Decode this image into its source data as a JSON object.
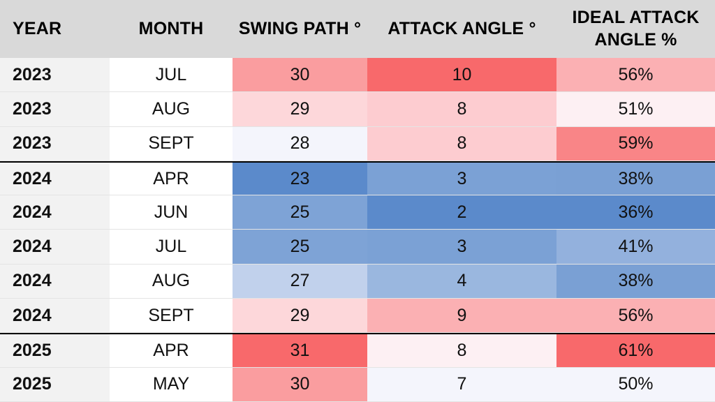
{
  "chart_data": {
    "type": "table",
    "columns": [
      "YEAR",
      "MONTH",
      "SWING PATH °",
      "ATTACK ANGLE °",
      "IDEAL ATTACK ANGLE %"
    ],
    "rows": [
      {
        "year": "2023",
        "month": "JUL",
        "swing_path": "30",
        "attack_angle": "10",
        "ideal_pct": "56%"
      },
      {
        "year": "2023",
        "month": "AUG",
        "swing_path": "29",
        "attack_angle": "8",
        "ideal_pct": "51%"
      },
      {
        "year": "2023",
        "month": "SEPT",
        "swing_path": "28",
        "attack_angle": "8",
        "ideal_pct": "59%"
      },
      {
        "year": "2024",
        "month": "APR",
        "swing_path": "23",
        "attack_angle": "3",
        "ideal_pct": "38%"
      },
      {
        "year": "2024",
        "month": "JUN",
        "swing_path": "25",
        "attack_angle": "2",
        "ideal_pct": "36%"
      },
      {
        "year": "2024",
        "month": "JUL",
        "swing_path": "25",
        "attack_angle": "3",
        "ideal_pct": "41%"
      },
      {
        "year": "2024",
        "month": "AUG",
        "swing_path": "27",
        "attack_angle": "4",
        "ideal_pct": "38%"
      },
      {
        "year": "2024",
        "month": "SEPT",
        "swing_path": "29",
        "attack_angle": "9",
        "ideal_pct": "56%"
      },
      {
        "year": "2025",
        "month": "APR",
        "swing_path": "31",
        "attack_angle": "8",
        "ideal_pct": "61%"
      },
      {
        "year": "2025",
        "month": "MAY",
        "swing_path": "30",
        "attack_angle": "7",
        "ideal_pct": "50%"
      }
    ],
    "cell_colors": {
      "swing_path": [
        "#fa9d9f",
        "#fdd7da",
        "#f4f5fc",
        "#5b8acb",
        "#7ea3d6",
        "#7ea3d6",
        "#c1d1ec",
        "#fdd7da",
        "#f8696b",
        "#fa9d9f"
      ],
      "attack_angle": [
        "#f8696b",
        "#fdccd0",
        "#fdccd0",
        "#7ba1d5",
        "#5b8acb",
        "#7ba1d5",
        "#9ab7df",
        "#fbb0b3",
        "#fdf0f3",
        "#f4f5fc"
      ],
      "ideal_pct": [
        "#fbb0b3",
        "#fdf0f3",
        "#f98587",
        "#7aa0d4",
        "#5b8acb",
        "#93b1dd",
        "#7aa0d4",
        "#fbb0b3",
        "#f8696b",
        "#f4f5fc"
      ]
    },
    "group_separator_colors": "#000000",
    "header_background": "#d9d9d9"
  }
}
